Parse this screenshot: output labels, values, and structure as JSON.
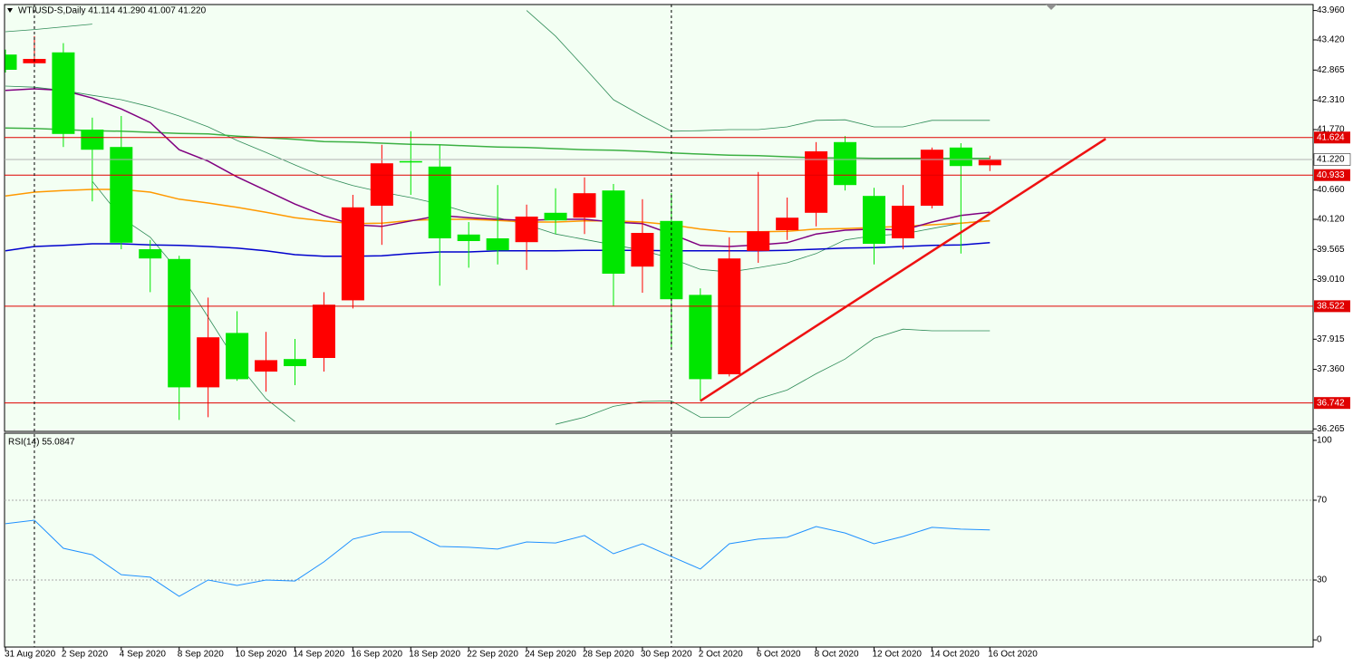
{
  "chart_data": [
    {
      "type": "candlestick",
      "title": "WTIUSD-S,Daily  41.114 41.290 41.007 41.220",
      "categories": [
        "31 Aug 2020",
        null,
        "2 Sep 2020",
        null,
        "4 Sep 2020",
        null,
        "8 Sep 2020",
        null,
        "10 Sep 2020",
        null,
        "14 Sep 2020",
        null,
        "16 Sep 2020",
        null,
        "18 Sep 2020",
        null,
        "22 Sep 2020",
        null,
        "24 Sep 2020",
        null,
        "28 Sep 2020",
        null,
        "30 Sep 2020",
        null,
        "2 Oct 2020",
        null,
        "6 Oct 2020",
        null,
        "8 Oct 2020",
        null,
        "12 Oct 2020",
        null,
        "14 Oct 2020",
        null,
        "16 Oct 2020"
      ],
      "open": [
        43.15,
        42.99,
        43.19,
        41.77,
        41.45,
        39.57,
        39.39,
        37.03,
        38.03,
        37.32,
        37.55,
        37.57,
        38.63,
        40.37,
        41.19,
        41.09,
        39.84,
        39.77,
        39.7,
        40.24,
        40.15,
        40.65,
        39.25,
        40.09,
        38.73,
        37.27,
        39.54,
        39.92,
        40.24,
        41.54,
        40.55,
        39.77,
        40.37,
        41.44,
        41.114
      ],
      "high": [
        43.24,
        43.49,
        43.36,
        41.99,
        42.02,
        39.74,
        39.45,
        38.68,
        38.43,
        38.05,
        37.92,
        38.78,
        40.57,
        41.49,
        41.74,
        41.49,
        40.07,
        40.75,
        40.39,
        40.69,
        40.89,
        40.77,
        40.49,
        40.6,
        38.85,
        39.79,
        40.99,
        40.52,
        41.54,
        41.65,
        40.7,
        40.75,
        41.44,
        41.52,
        41.29
      ],
      "low": [
        42.82,
        42.95,
        41.45,
        40.45,
        39.57,
        38.78,
        36.43,
        36.48,
        37.15,
        36.95,
        37.07,
        37.32,
        38.48,
        39.65,
        40.57,
        38.9,
        39.23,
        39.29,
        39.19,
        39.85,
        39.85,
        38.53,
        38.77,
        37.77,
        36.78,
        37.23,
        39.32,
        39.74,
        39.99,
        40.65,
        39.29,
        39.57,
        40.32,
        39.49,
        41.007
      ],
      "close": [
        42.87,
        43.07,
        41.69,
        41.4,
        39.69,
        39.4,
        37.03,
        37.95,
        37.18,
        37.53,
        37.42,
        38.55,
        40.34,
        41.15,
        41.17,
        39.77,
        39.72,
        39.55,
        40.17,
        40.1,
        40.6,
        39.12,
        39.87,
        38.65,
        37.18,
        39.4,
        39.9,
        40.15,
        41.37,
        40.75,
        39.67,
        40.37,
        41.4,
        41.1,
        41.22
      ],
      "up_color": "#ff0000",
      "down_color": "#00e600",
      "lines": [
        {
          "color": "#2e8b57",
          "width": 0.8,
          "values": [
            43.57,
            43.61,
            43.66,
            43.71,
            null,
            null,
            null,
            null,
            null,
            null,
            null,
            null,
            null,
            null,
            null,
            null,
            null,
            null,
            43.96,
            43.49,
            42.91,
            42.32,
            42.02,
            41.74,
            41.75,
            41.77,
            41.77,
            41.82,
            41.94,
            41.95,
            41.82,
            41.82,
            41.94,
            41.94,
            41.94
          ]
        },
        {
          "color": "#2e8b57",
          "width": 0.8,
          "values": [
            42.57,
            42.55,
            42.49,
            42.4,
            42.32,
            42.19,
            42.02,
            41.82,
            41.57,
            41.35,
            41.12,
            40.9,
            40.74,
            40.62,
            40.52,
            40.4,
            40.24,
            40.15,
            40.02,
            39.85,
            39.75,
            39.65,
            39.55,
            39.4,
            39.2,
            39.15,
            39.23,
            39.32,
            39.49,
            39.74,
            39.82,
            39.85,
            39.95,
            40.05,
            40.1
          ]
        },
        {
          "color": "#2e8b57",
          "width": 0.8,
          "values": [
            null,
            null,
            null,
            40.82,
            40.15,
            39.79,
            39.15,
            38.32,
            37.48,
            36.82,
            36.4,
            null,
            null,
            null,
            null,
            null,
            null,
            null,
            null,
            36.35,
            36.48,
            36.68,
            36.77,
            36.78,
            36.48,
            36.48,
            36.82,
            36.98,
            37.28,
            37.55,
            37.93,
            38.1,
            38.07,
            38.07,
            38.07
          ]
        },
        {
          "color": "#3cb043",
          "width": 1.5,
          "values": [
            41.8,
            41.79,
            41.77,
            41.75,
            41.74,
            41.72,
            41.7,
            41.69,
            41.65,
            41.62,
            41.59,
            41.55,
            41.54,
            41.52,
            41.5,
            41.49,
            41.47,
            41.45,
            41.44,
            41.42,
            41.4,
            41.39,
            41.37,
            41.34,
            41.32,
            41.3,
            41.29,
            41.27,
            41.25,
            41.25,
            41.24,
            41.24,
            41.24,
            41.24,
            41.24
          ]
        },
        {
          "color": "#ff9900",
          "width": 1.5,
          "values": [
            40.55,
            40.62,
            40.65,
            40.67,
            40.67,
            40.62,
            40.49,
            40.42,
            40.34,
            40.25,
            40.15,
            40.09,
            40.04,
            40.05,
            40.1,
            40.12,
            40.12,
            40.1,
            40.07,
            40.07,
            40.09,
            40.09,
            40.07,
            40.02,
            39.94,
            39.89,
            39.89,
            39.9,
            39.94,
            39.95,
            39.97,
            39.99,
            40.02,
            40.05,
            40.09
          ]
        },
        {
          "color": "#0000cd",
          "width": 1.5,
          "values": [
            39.54,
            39.62,
            39.64,
            39.67,
            39.67,
            39.65,
            39.64,
            39.62,
            39.59,
            39.54,
            39.47,
            39.44,
            39.44,
            39.45,
            39.49,
            39.52,
            39.52,
            39.54,
            39.54,
            39.54,
            39.55,
            39.55,
            39.55,
            39.54,
            39.54,
            39.54,
            39.54,
            39.55,
            39.57,
            39.59,
            39.6,
            39.62,
            39.64,
            39.65,
            39.69
          ]
        },
        {
          "color": "#800080",
          "width": 1.5,
          "values": [
            42.49,
            42.52,
            42.49,
            42.35,
            42.15,
            41.9,
            41.4,
            41.19,
            40.9,
            40.65,
            40.4,
            40.19,
            40.02,
            39.99,
            40.09,
            40.19,
            40.15,
            40.12,
            40.1,
            40.12,
            40.12,
            40.07,
            40.04,
            39.85,
            39.64,
            39.62,
            39.65,
            39.69,
            39.85,
            39.92,
            39.94,
            39.92,
            40.07,
            40.19,
            40.25
          ]
        }
      ],
      "levels": [
        {
          "value": 41.624,
          "label": "41.624"
        },
        {
          "value": 40.933,
          "label": "40.933"
        },
        {
          "value": 38.522,
          "label": "38.522"
        },
        {
          "value": 36.742,
          "label": "36.742"
        }
      ],
      "level_color": "#e00000",
      "price_line": {
        "value": 41.22,
        "label": "41.220",
        "color": "#b0b0b0"
      },
      "trendline": {
        "y": [
          36.78,
          41.6
        ],
        "color": "#ee1111"
      },
      "ylim": [
        36.22,
        44.07
      ],
      "yticks": [
        {
          "value": 43.96,
          "label": "43.960"
        },
        {
          "value": 43.42,
          "label": "43.420"
        },
        {
          "value": 42.865,
          "label": "42.865"
        },
        {
          "value": 42.31,
          "label": "42.310"
        },
        {
          "value": 41.77,
          "label": "41.770"
        },
        {
          "value": 40.66,
          "label": "40.660"
        },
        {
          "value": 40.12,
          "label": "40.120"
        },
        {
          "value": 39.565,
          "label": "39.565"
        },
        {
          "value": 39.01,
          "label": "39.010"
        },
        {
          "value": 37.915,
          "label": "37.915"
        },
        {
          "value": 37.36,
          "label": "37.360"
        },
        {
          "value": 36.265,
          "label": "36.265"
        }
      ]
    },
    {
      "type": "line",
      "title": "RSI(14) 55.0847",
      "color": "#1e90ff",
      "values": [
        58.2,
        60.0,
        45.9,
        42.7,
        32.7,
        31.4,
        21.8,
        30.0,
        27.3,
        30.0,
        29.5,
        39.1,
        50.5,
        54.1,
        54.1,
        46.8,
        46.4,
        45.5,
        49.1,
        48.6,
        52.3,
        43.2,
        48.2,
        41.8,
        35.5,
        48.2,
        50.5,
        51.4,
        56.8,
        53.6,
        48.2,
        51.8,
        56.4,
        55.5,
        55.08
      ],
      "levels": [
        70,
        30
      ],
      "ylim": [
        -3.6,
        103.6
      ],
      "yticks": [
        0,
        30,
        70,
        100
      ]
    }
  ]
}
